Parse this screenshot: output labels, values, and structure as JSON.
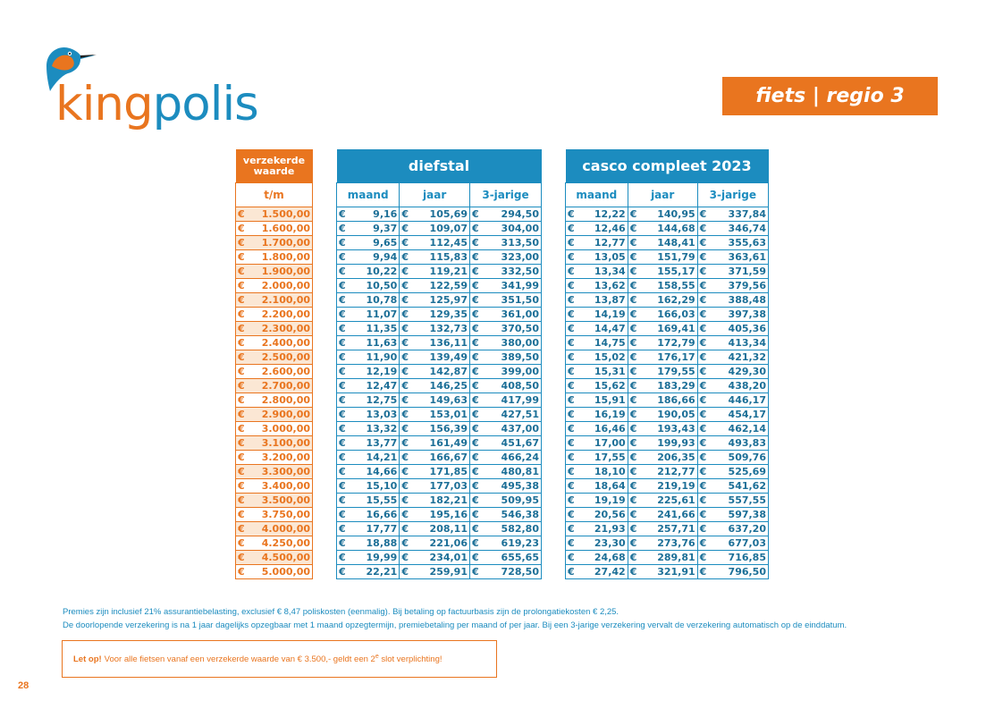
{
  "brand": {
    "name_part1": "king",
    "name_part2": "polis",
    "color_orange": "#e9751f",
    "color_blue": "#1c8cbf",
    "logo_icon": "kingfisher-bird-icon"
  },
  "badge": "fiets | regio 3",
  "value_column": {
    "header_line1": "verzekerde",
    "header_line2": "waarde",
    "sub_header": "t/m"
  },
  "currency": "€",
  "values": [
    "1.500,00",
    "1.600,00",
    "1.700,00",
    "1.800,00",
    "1.900,00",
    "2.000,00",
    "2.100,00",
    "2.200,00",
    "2.300,00",
    "2.400,00",
    "2.500,00",
    "2.600,00",
    "2.700,00",
    "2.800,00",
    "2.900,00",
    "3.000,00",
    "3.100,00",
    "3.200,00",
    "3.300,00",
    "3.400,00",
    "3.500,00",
    "3.750,00",
    "4.000,00",
    "4.250,00",
    "4.500,00",
    "5.000,00"
  ],
  "diefstal": {
    "title": "diefstal",
    "columns": [
      "maand",
      "jaar",
      "3-jarige"
    ],
    "rows": [
      [
        "9,16",
        "105,69",
        "294,50"
      ],
      [
        "9,37",
        "109,07",
        "304,00"
      ],
      [
        "9,65",
        "112,45",
        "313,50"
      ],
      [
        "9,94",
        "115,83",
        "323,00"
      ],
      [
        "10,22",
        "119,21",
        "332,50"
      ],
      [
        "10,50",
        "122,59",
        "341,99"
      ],
      [
        "10,78",
        "125,97",
        "351,50"
      ],
      [
        "11,07",
        "129,35",
        "361,00"
      ],
      [
        "11,35",
        "132,73",
        "370,50"
      ],
      [
        "11,63",
        "136,11",
        "380,00"
      ],
      [
        "11,90",
        "139,49",
        "389,50"
      ],
      [
        "12,19",
        "142,87",
        "399,00"
      ],
      [
        "12,47",
        "146,25",
        "408,50"
      ],
      [
        "12,75",
        "149,63",
        "417,99"
      ],
      [
        "13,03",
        "153,01",
        "427,51"
      ],
      [
        "13,32",
        "156,39",
        "437,00"
      ],
      [
        "13,77",
        "161,49",
        "451,67"
      ],
      [
        "14,21",
        "166,67",
        "466,24"
      ],
      [
        "14,66",
        "171,85",
        "480,81"
      ],
      [
        "15,10",
        "177,03",
        "495,38"
      ],
      [
        "15,55",
        "182,21",
        "509,95"
      ],
      [
        "16,66",
        "195,16",
        "546,38"
      ],
      [
        "17,77",
        "208,11",
        "582,80"
      ],
      [
        "18,88",
        "221,06",
        "619,23"
      ],
      [
        "19,99",
        "234,01",
        "655,65"
      ],
      [
        "22,21",
        "259,91",
        "728,50"
      ]
    ]
  },
  "casco": {
    "title": "casco compleet 2023",
    "columns": [
      "maand",
      "jaar",
      "3-jarige"
    ],
    "rows": [
      [
        "12,22",
        "140,95",
        "337,84"
      ],
      [
        "12,46",
        "144,68",
        "346,74"
      ],
      [
        "12,77",
        "148,41",
        "355,63"
      ],
      [
        "13,05",
        "151,79",
        "363,61"
      ],
      [
        "13,34",
        "155,17",
        "371,59"
      ],
      [
        "13,62",
        "158,55",
        "379,56"
      ],
      [
        "13,87",
        "162,29",
        "388,48"
      ],
      [
        "14,19",
        "166,03",
        "397,38"
      ],
      [
        "14,47",
        "169,41",
        "405,36"
      ],
      [
        "14,75",
        "172,79",
        "413,34"
      ],
      [
        "15,02",
        "176,17",
        "421,32"
      ],
      [
        "15,31",
        "179,55",
        "429,30"
      ],
      [
        "15,62",
        "183,29",
        "438,20"
      ],
      [
        "15,91",
        "186,66",
        "446,17"
      ],
      [
        "16,19",
        "190,05",
        "454,17"
      ],
      [
        "16,46",
        "193,43",
        "462,14"
      ],
      [
        "17,00",
        "199,93",
        "493,83"
      ],
      [
        "17,55",
        "206,35",
        "509,76"
      ],
      [
        "18,10",
        "212,77",
        "525,69"
      ],
      [
        "18,64",
        "219,19",
        "541,62"
      ],
      [
        "19,19",
        "225,61",
        "557,55"
      ],
      [
        "20,56",
        "241,66",
        "597,38"
      ],
      [
        "21,93",
        "257,71",
        "637,20"
      ],
      [
        "23,30",
        "273,76",
        "677,03"
      ],
      [
        "24,68",
        "289,81",
        "716,85"
      ],
      [
        "27,42",
        "321,91",
        "796,50"
      ]
    ]
  },
  "notes": {
    "line1": "Premies zijn inclusief 21% assurantiebelasting, exclusief € 8,47 poliskosten (eenmalig). Bij betaling op factuurbasis zijn de prolongatiekosten € 2,25.",
    "line2": "De doorlopende verzekering is na 1 jaar dagelijks opzegbaar met 1 maand opzegtermijn, premiebetaling per maand of per jaar. Bij een 3-jarige verzekering vervalt de verzekering automatisch op de einddatum."
  },
  "letop": {
    "bold": "Let op!",
    "text_before": "Voor alle fietsen vanaf een verzekerde waarde van € 3.500,- geldt een 2",
    "superscript": "e",
    "text_after": " slot verplichting!"
  },
  "page_number": "28"
}
